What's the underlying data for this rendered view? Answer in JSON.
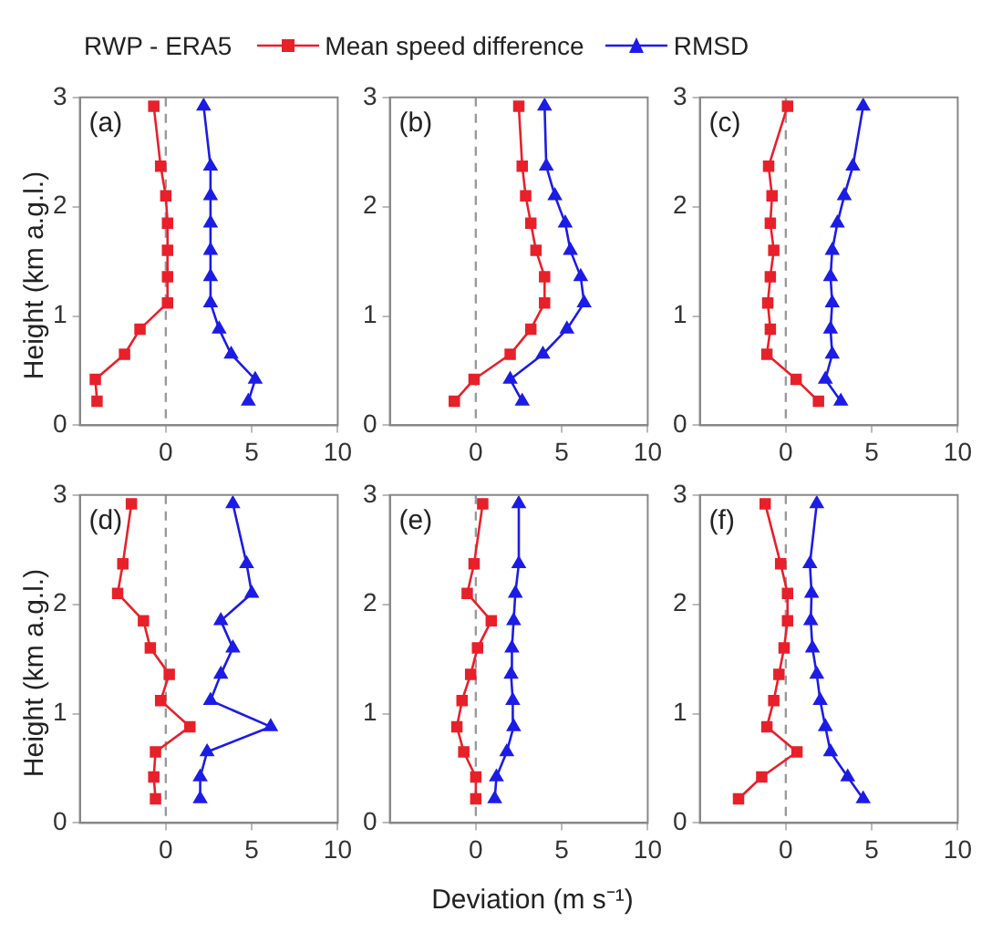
{
  "chart_data": [
    {
      "type": "line",
      "title": "(a)",
      "ylabel": "Height  (km a.g.l.)",
      "legend": "top",
      "legend_title": "RWP - ERA5",
      "xlim": [
        -5,
        10
      ],
      "xticks": [
        0,
        5,
        10
      ],
      "ylim": [
        0,
        3
      ],
      "yticks": [
        0,
        1,
        2,
        3
      ],
      "ref_lines": [
        {
          "axis": "x",
          "value": 0,
          "color": "#999999",
          "line_style": "dashed"
        }
      ],
      "series": [
        {
          "name": "Mean speed difference",
          "color": "#e8202a",
          "marker": "square",
          "x": [
            -4.0,
            -4.1,
            -2.4,
            -1.5,
            0.1,
            0.1,
            0.1,
            0.1,
            0.0,
            -0.3,
            -0.7
          ],
          "values": [
            0.22,
            0.42,
            0.65,
            0.88,
            1.12,
            1.36,
            1.6,
            1.85,
            2.1,
            2.37,
            2.92
          ]
        },
        {
          "name": "RMSD",
          "color": "#1c1ce6",
          "marker": "triangle",
          "x": [
            4.8,
            5.2,
            3.8,
            3.1,
            2.6,
            2.6,
            2.6,
            2.6,
            2.6,
            2.6,
            2.2
          ],
          "values": [
            0.22,
            0.42,
            0.65,
            0.88,
            1.12,
            1.36,
            1.6,
            1.85,
            2.1,
            2.37,
            2.92
          ]
        }
      ]
    },
    {
      "type": "line",
      "title": "(b)",
      "xlim": [
        -5,
        10
      ],
      "xticks": [
        0,
        5,
        10
      ],
      "ylim": [
        0,
        3
      ],
      "yticks": [
        0,
        1,
        2,
        3
      ],
      "ref_lines": [
        {
          "axis": "x",
          "value": 0,
          "color": "#999999",
          "line_style": "dashed"
        }
      ],
      "series": [
        {
          "color": "#e8202a",
          "marker": "square",
          "x": [
            -1.25,
            -0.1,
            2.0,
            3.2,
            4.0,
            4.0,
            3.5,
            3.2,
            2.9,
            2.7,
            2.5
          ],
          "values": [
            0.22,
            0.42,
            0.65,
            0.88,
            1.12,
            1.36,
            1.6,
            1.85,
            2.1,
            2.37,
            2.92
          ]
        },
        {
          "color": "#1c1ce6",
          "marker": "triangle",
          "x": [
            2.7,
            2.0,
            3.9,
            5.3,
            6.3,
            6.1,
            5.5,
            5.2,
            4.6,
            4.1,
            4.0
          ],
          "values": [
            0.22,
            0.42,
            0.65,
            0.88,
            1.12,
            1.36,
            1.6,
            1.85,
            2.1,
            2.37,
            2.92
          ]
        }
      ]
    },
    {
      "type": "line",
      "title": "(c)",
      "xlim": [
        -5,
        10
      ],
      "xticks": [
        0,
        5,
        10
      ],
      "ylim": [
        0,
        3
      ],
      "yticks": [
        0,
        1,
        2,
        3
      ],
      "ref_lines": [
        {
          "axis": "x",
          "value": 0,
          "color": "#999999",
          "line_style": "dashed"
        }
      ],
      "series": [
        {
          "color": "#e8202a",
          "marker": "square",
          "x": [
            1.9,
            0.6,
            -1.1,
            -0.9,
            -1.05,
            -0.9,
            -0.7,
            -0.9,
            -0.8,
            -1.0,
            0.1
          ],
          "values": [
            0.22,
            0.42,
            0.65,
            0.88,
            1.12,
            1.36,
            1.6,
            1.85,
            2.1,
            2.37,
            2.92
          ]
        },
        {
          "color": "#1c1ce6",
          "marker": "triangle",
          "x": [
            3.2,
            2.3,
            2.7,
            2.6,
            2.7,
            2.6,
            2.7,
            3.0,
            3.4,
            3.9,
            4.5
          ],
          "values": [
            0.22,
            0.42,
            0.65,
            0.88,
            1.12,
            1.36,
            1.6,
            1.85,
            2.1,
            2.37,
            2.92
          ]
        }
      ]
    },
    {
      "type": "line",
      "title": "(d)",
      "ylabel": "Height  (km a.g.l.)",
      "xlim": [
        -5,
        10
      ],
      "xticks": [
        0,
        5,
        10
      ],
      "ylim": [
        0,
        3
      ],
      "yticks": [
        0,
        1,
        2,
        3
      ],
      "ref_lines": [
        {
          "axis": "x",
          "value": 0,
          "color": "#999999",
          "line_style": "dashed"
        }
      ],
      "series": [
        {
          "color": "#e8202a",
          "marker": "square",
          "x": [
            -0.6,
            -0.7,
            -0.6,
            1.4,
            -0.3,
            0.2,
            -0.9,
            -1.3,
            -2.8,
            -2.5,
            -2.0
          ],
          "values": [
            0.22,
            0.42,
            0.65,
            0.88,
            1.12,
            1.36,
            1.6,
            1.85,
            2.1,
            2.37,
            2.92
          ]
        },
        {
          "color": "#1c1ce6",
          "marker": "triangle",
          "x": [
            2.0,
            2.0,
            2.4,
            6.1,
            2.6,
            3.2,
            3.9,
            3.2,
            5.0,
            4.7,
            3.9
          ],
          "values": [
            0.22,
            0.42,
            0.65,
            0.88,
            1.12,
            1.36,
            1.6,
            1.85,
            2.1,
            2.37,
            2.92
          ]
        }
      ]
    },
    {
      "type": "line",
      "title": "(e)",
      "xlabel": "Deviation (m s⁻¹)",
      "xlim": [
        -5,
        10
      ],
      "xticks": [
        0,
        5,
        10
      ],
      "ylim": [
        0,
        3
      ],
      "yticks": [
        0,
        1,
        2,
        3
      ],
      "ref_lines": [
        {
          "axis": "x",
          "value": 0,
          "color": "#999999",
          "line_style": "dashed"
        }
      ],
      "series": [
        {
          "color": "#e8202a",
          "marker": "square",
          "x": [
            0.0,
            0.0,
            -0.7,
            -1.1,
            -0.8,
            -0.3,
            0.1,
            0.9,
            -0.5,
            -0.1,
            0.4
          ],
          "values": [
            0.22,
            0.42,
            0.65,
            0.88,
            1.12,
            1.36,
            1.6,
            1.85,
            2.1,
            2.37,
            2.92
          ]
        },
        {
          "color": "#1c1ce6",
          "marker": "triangle",
          "x": [
            1.1,
            1.2,
            1.8,
            2.2,
            2.15,
            2.05,
            2.1,
            2.2,
            2.3,
            2.5,
            2.5
          ],
          "values": [
            0.22,
            0.42,
            0.65,
            0.88,
            1.12,
            1.36,
            1.6,
            1.85,
            2.1,
            2.37,
            2.92
          ]
        }
      ]
    },
    {
      "type": "line",
      "title": "(f)",
      "xlim": [
        -5,
        10
      ],
      "xticks": [
        0,
        5,
        10
      ],
      "ylim": [
        0,
        3
      ],
      "yticks": [
        0,
        1,
        2,
        3
      ],
      "ref_lines": [
        {
          "axis": "x",
          "value": 0,
          "color": "#999999",
          "line_style": "dashed"
        }
      ],
      "series": [
        {
          "color": "#e8202a",
          "marker": "square",
          "x": [
            -2.75,
            -1.4,
            0.65,
            -1.1,
            -0.7,
            -0.4,
            -0.1,
            0.1,
            0.1,
            -0.3,
            -1.2
          ],
          "values": [
            0.22,
            0.42,
            0.65,
            0.88,
            1.12,
            1.36,
            1.6,
            1.85,
            2.1,
            2.37,
            2.92
          ]
        },
        {
          "color": "#1c1ce6",
          "marker": "triangle",
          "x": [
            4.5,
            3.6,
            2.6,
            2.3,
            2.0,
            1.8,
            1.55,
            1.45,
            1.5,
            1.4,
            1.8
          ],
          "values": [
            0.22,
            0.42,
            0.65,
            0.88,
            1.12,
            1.36,
            1.6,
            1.85,
            2.1,
            2.37,
            2.92
          ]
        }
      ]
    }
  ]
}
